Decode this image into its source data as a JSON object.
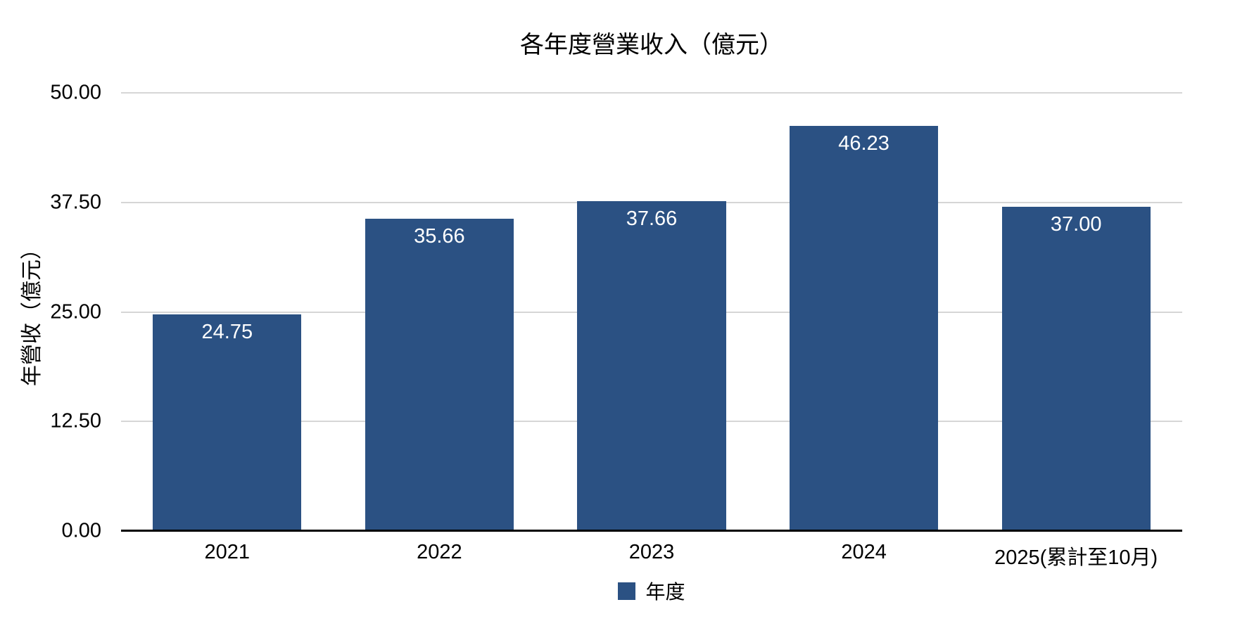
{
  "chart": {
    "background_color": "#ffffff",
    "bar_color": "#2b5183",
    "value_label_color": "#ffffff",
    "grid_color": "#d6d6d6",
    "axis_color": "#000000",
    "text_color": "#000000"
  },
  "chart_data": {
    "type": "bar",
    "title": "各年度營業收入（億元）",
    "xlabel": "",
    "ylabel": "年營收（億元）",
    "categories": [
      "2021",
      "2022",
      "2023",
      "2024",
      "2025(累計至10月)"
    ],
    "series": [
      {
        "name": "年度",
        "values": [
          24.75,
          35.66,
          37.66,
          46.23,
          37.0
        ],
        "value_labels": [
          "24.75",
          "35.66",
          "37.66",
          "46.23",
          "37.00"
        ]
      }
    ],
    "ylim": [
      0,
      50
    ],
    "yticks": [
      "0.00",
      "12.50",
      "25.00",
      "37.50",
      "50.00"
    ],
    "grid": true,
    "legend_position": "bottom",
    "legend_label": "年度"
  }
}
